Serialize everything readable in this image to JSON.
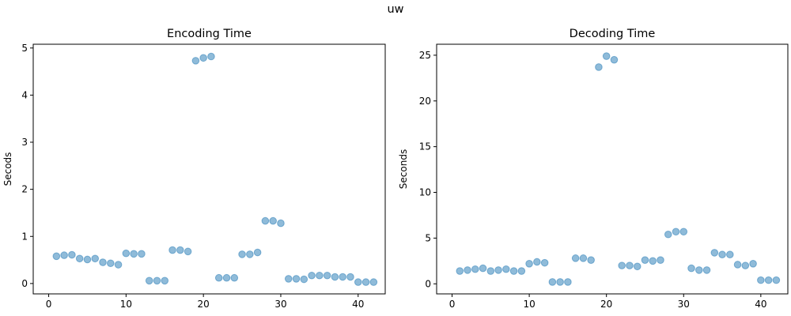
{
  "figure": {
    "suptitle": "uw"
  },
  "chart_data": [
    {
      "type": "scatter",
      "title": "Encoding Time",
      "xlabel": "",
      "ylabel": "Secods",
      "xlim": [
        -2,
        43.5
      ],
      "ylim": [
        -0.22,
        5.08
      ],
      "xticks": [
        0,
        10,
        20,
        30,
        40
      ],
      "yticks": [
        0,
        1,
        2,
        3,
        4,
        5
      ],
      "grid": false,
      "x": [
        1,
        2,
        3,
        4,
        5,
        6,
        7,
        8,
        9,
        10,
        11,
        12,
        13,
        14,
        15,
        16,
        17,
        18,
        19,
        20,
        21,
        22,
        23,
        24,
        25,
        26,
        27,
        28,
        29,
        30,
        31,
        32,
        33,
        34,
        35,
        36,
        37,
        38,
        39,
        40,
        41,
        42
      ],
      "y": [
        0.58,
        0.6,
        0.61,
        0.53,
        0.51,
        0.53,
        0.45,
        0.43,
        0.4,
        0.64,
        0.63,
        0.63,
        0.06,
        0.06,
        0.06,
        0.71,
        0.71,
        0.68,
        4.73,
        4.79,
        4.82,
        0.12,
        0.12,
        0.12,
        0.62,
        0.62,
        0.66,
        1.33,
        1.33,
        1.28,
        0.1,
        0.1,
        0.09,
        0.17,
        0.17,
        0.17,
        0.14,
        0.14,
        0.14,
        0.03,
        0.03,
        0.03
      ]
    },
    {
      "type": "scatter",
      "title": "Decoding Time",
      "xlabel": "",
      "ylabel": "Seconds",
      "xlim": [
        -2,
        43.5
      ],
      "ylim": [
        -1.1,
        26.2
      ],
      "xticks": [
        0,
        10,
        20,
        30,
        40
      ],
      "yticks": [
        0,
        5,
        10,
        15,
        20,
        25
      ],
      "grid": false,
      "x": [
        1,
        2,
        3,
        4,
        5,
        6,
        7,
        8,
        9,
        10,
        11,
        12,
        13,
        14,
        15,
        16,
        17,
        18,
        19,
        20,
        21,
        22,
        23,
        24,
        25,
        26,
        27,
        28,
        29,
        30,
        31,
        32,
        33,
        34,
        35,
        36,
        37,
        38,
        39,
        40,
        41,
        42
      ],
      "y": [
        1.4,
        1.5,
        1.6,
        1.7,
        1.4,
        1.5,
        1.6,
        1.4,
        1.4,
        2.2,
        2.4,
        2.3,
        0.2,
        0.2,
        0.2,
        2.8,
        2.8,
        2.6,
        23.7,
        24.9,
        24.5,
        2.0,
        2.0,
        1.9,
        2.6,
        2.5,
        2.6,
        5.4,
        5.7,
        5.7,
        1.7,
        1.5,
        1.5,
        3.4,
        3.2,
        3.2,
        2.1,
        2.0,
        2.2,
        0.4,
        0.4,
        0.4
      ]
    }
  ]
}
